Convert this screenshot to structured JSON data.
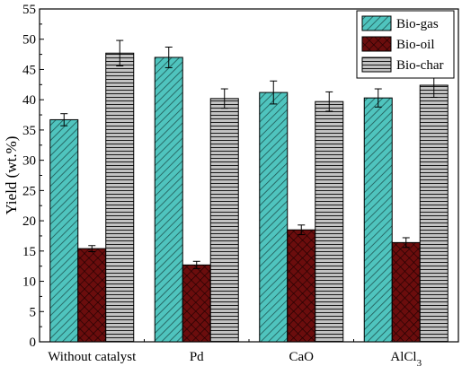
{
  "chart_data": {
    "type": "bar",
    "title": "",
    "xlabel": "",
    "ylabel": "Yield (wt.%)",
    "ylim": [
      0,
      55
    ],
    "yticks": [
      0,
      5,
      10,
      15,
      20,
      25,
      30,
      35,
      40,
      45,
      50,
      55
    ],
    "categories": [
      "Without catalyst",
      "Pd",
      "CaO",
      "AlCl"
    ],
    "category_subscripts": [
      "",
      "",
      "",
      "3"
    ],
    "series": [
      {
        "name": "Bio-gas",
        "values": [
          36.7,
          47.0,
          41.2,
          40.3
        ],
        "errors": [
          1.0,
          1.7,
          1.9,
          1.5
        ],
        "color": "#4fc4be",
        "pattern": "diagonal-hatch"
      },
      {
        "name": "Bio-oil",
        "values": [
          15.4,
          12.7,
          18.5,
          16.4
        ],
        "errors": [
          0.5,
          0.6,
          0.8,
          0.8
        ],
        "color": "#6b0d0d",
        "pattern": "crosshatch"
      },
      {
        "name": "Bio-char",
        "values": [
          47.7,
          40.2,
          39.7,
          42.4
        ],
        "errors": [
          2.1,
          1.6,
          1.6,
          2.0
        ],
        "color": "#b5b5b5",
        "pattern": "horizontal-lines"
      }
    ],
    "legend_position": "top-right",
    "grid": false,
    "error_bars": true
  }
}
